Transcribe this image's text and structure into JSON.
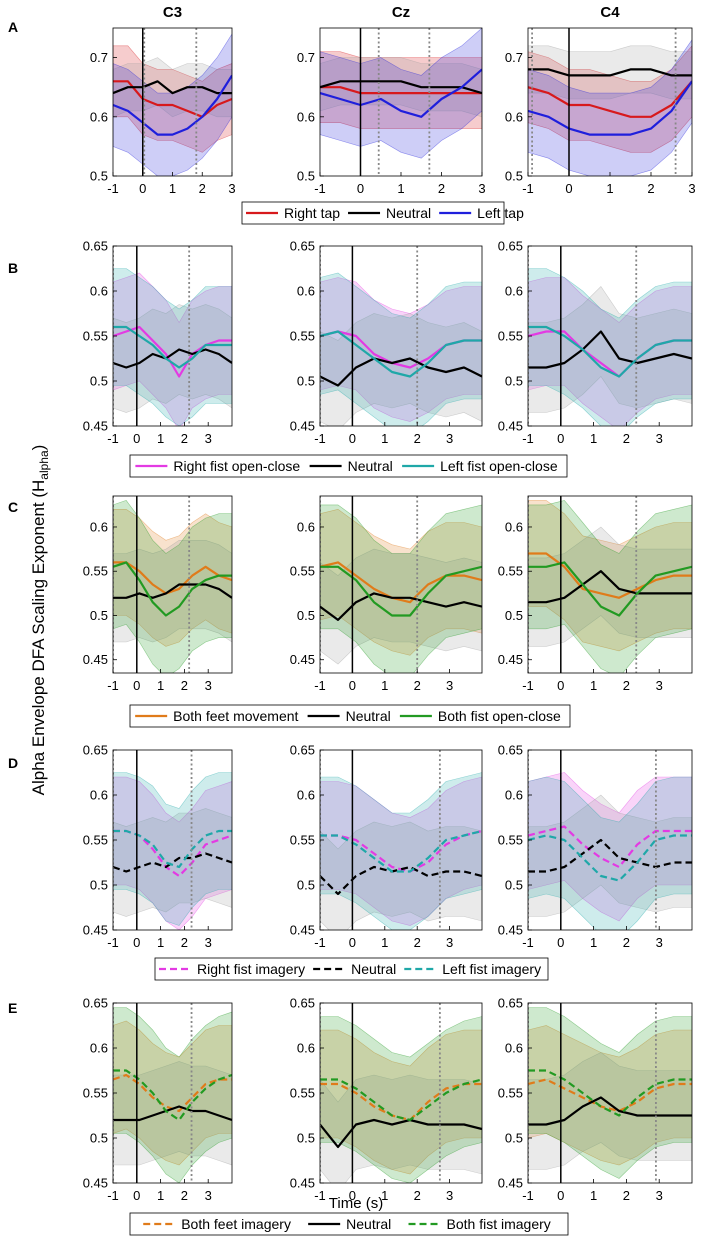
{
  "figure": {
    "ylabel_main": "Alpha Envelope DFA Scaling Exponent  (H",
    "ylabel_sub": "alpha",
    "ylabel_close": ")",
    "xlabel": "Time (s)"
  },
  "colors": {
    "red": "#d7191c",
    "black": "#000000",
    "blue": "#1f1fdc",
    "magenta": "#e33ae3",
    "cyan": "#1fa8a8",
    "orange": "#e07b1a",
    "green": "#229a22",
    "gray_band": "#9e9e9e"
  },
  "chart_data": [
    {
      "panel": "A",
      "type": "line",
      "channels": [
        "C3",
        "Cz",
        "C4"
      ],
      "xlabel": "",
      "ylabel": "",
      "xlim": [
        -1,
        3
      ],
      "ylim": [
        0.5,
        0.75
      ],
      "xticks": [
        -1,
        0,
        1,
        2,
        3
      ],
      "xtick_labels": [
        "-1",
        "0",
        "1",
        "2",
        "3"
      ],
      "yticks": [
        0.5,
        0.6,
        0.7
      ],
      "ytick_labels": [
        "0.5",
        "0.6",
        "0.7"
      ],
      "event_lines": [
        [
          0.05,
          1.8
        ],
        [
          0.45,
          1.7
        ],
        [
          -0.9,
          2.6
        ]
      ],
      "legend": [
        "Right tap",
        "Neutral",
        "Left tap"
      ],
      "series": [
        {
          "name": "Right tap",
          "color": "red",
          "dash": false,
          "band": 0.06,
          "values": [
            [
              0.66,
              0.66,
              0.63,
              0.62,
              0.62,
              0.61,
              0.6,
              0.62,
              0.63
            ],
            [
              0.65,
              0.65,
              0.64,
              0.64,
              0.64,
              0.64,
              0.64,
              0.64,
              0.64
            ],
            [
              0.65,
              0.64,
              0.62,
              0.62,
              0.61,
              0.6,
              0.6,
              0.62,
              0.66
            ]
          ]
        },
        {
          "name": "Neutral",
          "color": "black",
          "dash": false,
          "band": 0.04,
          "values": [
            [
              0.64,
              0.65,
              0.65,
              0.66,
              0.64,
              0.65,
              0.65,
              0.64,
              0.64
            ],
            [
              0.65,
              0.66,
              0.66,
              0.66,
              0.66,
              0.65,
              0.65,
              0.65,
              0.64
            ],
            [
              0.68,
              0.68,
              0.67,
              0.67,
              0.67,
              0.68,
              0.68,
              0.67,
              0.67
            ]
          ]
        },
        {
          "name": "Left tap",
          "color": "blue",
          "dash": false,
          "band": 0.07,
          "values": [
            [
              0.62,
              0.61,
              0.59,
              0.57,
              0.57,
              0.58,
              0.6,
              0.63,
              0.67
            ],
            [
              0.64,
              0.63,
              0.62,
              0.63,
              0.61,
              0.6,
              0.63,
              0.65,
              0.68
            ],
            [
              0.61,
              0.6,
              0.58,
              0.57,
              0.57,
              0.57,
              0.58,
              0.61,
              0.66
            ]
          ]
        }
      ]
    },
    {
      "panel": "B",
      "type": "line",
      "channels": [
        "",
        "",
        ""
      ],
      "xlabel": "",
      "ylabel": "",
      "xlim": [
        -1,
        4
      ],
      "ylim": [
        0.45,
        0.65
      ],
      "xticks": [
        -1,
        0,
        1,
        2,
        3
      ],
      "xtick_labels": [
        "-1",
        "0",
        "1",
        "2",
        "3"
      ],
      "yticks": [
        0.45,
        0.5,
        0.55,
        0.6,
        0.65
      ],
      "ytick_labels": [
        "0.45",
        "0.5",
        "0.55",
        "0.6",
        "0.65"
      ],
      "event_lines": [
        [
          -1,
          2.2
        ],
        [
          -1,
          2.0
        ],
        [
          -1,
          2.3
        ]
      ],
      "legend": [
        "Right fist open-close",
        "Neutral",
        "Left fist open-close"
      ],
      "series": [
        {
          "name": "Right fist open-close",
          "color": "magenta",
          "dash": false,
          "band": 0.06,
          "values": [
            [
              0.55,
              0.555,
              0.56,
              0.545,
              0.53,
              0.505,
              0.53,
              0.54,
              0.545,
              0.545
            ],
            [
              0.55,
              0.555,
              0.55,
              0.53,
              0.52,
              0.515,
              0.525,
              0.54,
              0.545,
              0.545
            ],
            [
              0.55,
              0.555,
              0.555,
              0.535,
              0.52,
              0.505,
              0.525,
              0.54,
              0.545,
              0.545
            ]
          ]
        },
        {
          "name": "Neutral",
          "color": "black",
          "dash": false,
          "band": 0.05,
          "values": [
            [
              0.52,
              0.515,
              0.52,
              0.53,
              0.525,
              0.535,
              0.53,
              0.535,
              0.53,
              0.52
            ],
            [
              0.505,
              0.495,
              0.515,
              0.525,
              0.52,
              0.525,
              0.515,
              0.51,
              0.515,
              0.505
            ],
            [
              0.515,
              0.515,
              0.52,
              0.535,
              0.555,
              0.525,
              0.52,
              0.525,
              0.53,
              0.525
            ]
          ]
        },
        {
          "name": "Left fist open-close",
          "color": "cyan",
          "dash": false,
          "band": 0.065,
          "values": [
            [
              0.56,
              0.56,
              0.55,
              0.54,
              0.525,
              0.515,
              0.525,
              0.54,
              0.54,
              0.54
            ],
            [
              0.55,
              0.555,
              0.54,
              0.525,
              0.51,
              0.505,
              0.52,
              0.54,
              0.545,
              0.545
            ],
            [
              0.56,
              0.56,
              0.55,
              0.535,
              0.515,
              0.505,
              0.525,
              0.54,
              0.545,
              0.545
            ]
          ]
        }
      ]
    },
    {
      "panel": "C",
      "type": "line",
      "channels": [
        "",
        "",
        ""
      ],
      "xlabel": "",
      "ylabel": "",
      "xlim": [
        -1,
        4
      ],
      "ylim": [
        0.435,
        0.635
      ],
      "xticks": [
        -1,
        0,
        1,
        2,
        3
      ],
      "xtick_labels": [
        "-1",
        "0",
        "1",
        "2",
        "3"
      ],
      "yticks": [
        0.45,
        0.5,
        0.55,
        0.6
      ],
      "ytick_labels": [
        "0.45",
        "0.5",
        "0.55",
        "0.6"
      ],
      "event_lines": [
        [
          -1,
          2.2
        ],
        [
          -1,
          2.0
        ],
        [
          -1,
          2.3
        ]
      ],
      "legend": [
        "Both feet movement",
        "Neutral",
        "Both fist open-close"
      ],
      "series": [
        {
          "name": "Both feet movement",
          "color": "orange",
          "dash": false,
          "band": 0.06,
          "values": [
            [
              0.56,
              0.56,
              0.55,
              0.535,
              0.525,
              0.53,
              0.545,
              0.555,
              0.545,
              0.54
            ],
            [
              0.555,
              0.56,
              0.545,
              0.53,
              0.52,
              0.515,
              0.535,
              0.545,
              0.545,
              0.54
            ],
            [
              0.57,
              0.57,
              0.555,
              0.53,
              0.525,
              0.52,
              0.53,
              0.54,
              0.545,
              0.545
            ]
          ]
        },
        {
          "name": "Neutral",
          "color": "black",
          "dash": false,
          "band": 0.05,
          "values": [
            [
              0.52,
              0.52,
              0.525,
              0.52,
              0.525,
              0.535,
              0.535,
              0.535,
              0.53,
              0.52
            ],
            [
              0.51,
              0.495,
              0.515,
              0.525,
              0.52,
              0.52,
              0.515,
              0.51,
              0.515,
              0.51
            ],
            [
              0.515,
              0.515,
              0.52,
              0.535,
              0.55,
              0.53,
              0.525,
              0.525,
              0.525,
              0.525
            ]
          ]
        },
        {
          "name": "Both fist open-close",
          "color": "green",
          "dash": false,
          "band": 0.07,
          "values": [
            [
              0.555,
              0.56,
              0.54,
              0.515,
              0.5,
              0.51,
              0.53,
              0.54,
              0.545,
              0.545
            ],
            [
              0.555,
              0.555,
              0.54,
              0.515,
              0.5,
              0.5,
              0.525,
              0.545,
              0.55,
              0.555
            ],
            [
              0.555,
              0.555,
              0.56,
              0.535,
              0.51,
              0.5,
              0.525,
              0.545,
              0.55,
              0.555
            ]
          ]
        }
      ]
    },
    {
      "panel": "D",
      "type": "line",
      "channels": [
        "",
        "",
        ""
      ],
      "xlabel": "",
      "ylabel": "",
      "xlim": [
        -1,
        4
      ],
      "ylim": [
        0.45,
        0.65
      ],
      "xticks": [
        -1,
        0,
        1,
        2,
        3
      ],
      "xtick_labels": [
        "-1",
        "0",
        "1",
        "2",
        "3"
      ],
      "yticks": [
        0.45,
        0.5,
        0.55,
        0.6,
        0.65
      ],
      "ytick_labels": [
        "0.45",
        "0.5",
        "0.55",
        "0.6",
        "0.65"
      ],
      "event_lines": [
        [
          -1,
          2.3
        ],
        [
          -1,
          2.7
        ],
        [
          -1,
          2.9
        ]
      ],
      "legend": [
        "Right fist imagery",
        "Neutral",
        "Left fist imagery"
      ],
      "series": [
        {
          "name": "Right fist imagery",
          "color": "magenta",
          "dash": true,
          "band": 0.06,
          "values": [
            [
              0.56,
              0.56,
              0.555,
              0.54,
              0.52,
              0.51,
              0.525,
              0.545,
              0.55,
              0.555
            ],
            [
              0.555,
              0.555,
              0.55,
              0.535,
              0.52,
              0.515,
              0.525,
              0.545,
              0.555,
              0.56
            ],
            [
              0.555,
              0.56,
              0.565,
              0.545,
              0.53,
              0.52,
              0.545,
              0.56,
              0.56,
              0.56
            ]
          ]
        },
        {
          "name": "Neutral",
          "color": "black",
          "dash": true,
          "band": 0.05,
          "values": [
            [
              0.52,
              0.515,
              0.52,
              0.525,
              0.52,
              0.53,
              0.53,
              0.535,
              0.53,
              0.525
            ],
            [
              0.51,
              0.49,
              0.51,
              0.52,
              0.515,
              0.52,
              0.51,
              0.515,
              0.515,
              0.51
            ],
            [
              0.515,
              0.515,
              0.52,
              0.535,
              0.55,
              0.53,
              0.525,
              0.52,
              0.525,
              0.525
            ]
          ]
        },
        {
          "name": "Left fist imagery",
          "color": "cyan",
          "dash": true,
          "band": 0.065,
          "values": [
            [
              0.56,
              0.56,
              0.555,
              0.545,
              0.525,
              0.52,
              0.54,
              0.555,
              0.56,
              0.56
            ],
            [
              0.555,
              0.555,
              0.545,
              0.53,
              0.515,
              0.515,
              0.53,
              0.55,
              0.555,
              0.56
            ],
            [
              0.55,
              0.555,
              0.55,
              0.53,
              0.51,
              0.505,
              0.525,
              0.55,
              0.555,
              0.555
            ]
          ]
        }
      ]
    },
    {
      "panel": "E",
      "type": "line",
      "channels": [
        "",
        "",
        ""
      ],
      "xlabel": "Time (s)",
      "ylabel": "",
      "xlim": [
        -1,
        4
      ],
      "ylim": [
        0.45,
        0.65
      ],
      "xticks": [
        -1,
        0,
        1,
        2,
        3
      ],
      "xtick_labels": [
        "-1",
        "0",
        "1",
        "2",
        "3"
      ],
      "yticks": [
        0.45,
        0.5,
        0.55,
        0.6,
        0.65
      ],
      "ytick_labels": [
        "0.45",
        "0.5",
        "0.55",
        "0.6",
        "0.65"
      ],
      "event_lines": [
        [
          -1,
          2.3
        ],
        [
          -1,
          2.7
        ],
        [
          -1,
          2.9
        ]
      ],
      "legend": [
        "Both feet imagery",
        "Neutral",
        "Both fist imagery"
      ],
      "series": [
        {
          "name": "Both feet imagery",
          "color": "orange",
          "dash": true,
          "band": 0.06,
          "values": [
            [
              0.565,
              0.57,
              0.56,
              0.545,
              0.535,
              0.53,
              0.545,
              0.56,
              0.565,
              0.565
            ],
            [
              0.56,
              0.56,
              0.55,
              0.535,
              0.525,
              0.52,
              0.54,
              0.555,
              0.56,
              0.56
            ],
            [
              0.56,
              0.565,
              0.555,
              0.545,
              0.535,
              0.53,
              0.54,
              0.555,
              0.56,
              0.56
            ]
          ]
        },
        {
          "name": "Neutral",
          "color": "black",
          "dash": false,
          "band": 0.05,
          "values": [
            [
              0.52,
              0.52,
              0.52,
              0.525,
              0.53,
              0.535,
              0.53,
              0.53,
              0.525,
              0.52
            ],
            [
              0.515,
              0.49,
              0.515,
              0.52,
              0.515,
              0.52,
              0.515,
              0.515,
              0.515,
              0.51
            ],
            [
              0.515,
              0.515,
              0.52,
              0.535,
              0.545,
              0.53,
              0.525,
              0.525,
              0.525,
              0.525
            ]
          ]
        },
        {
          "name": "Both fist imagery",
          "color": "green",
          "dash": true,
          "band": 0.07,
          "values": [
            [
              0.575,
              0.575,
              0.565,
              0.55,
              0.53,
              0.52,
              0.54,
              0.555,
              0.565,
              0.57
            ],
            [
              0.565,
              0.565,
              0.555,
              0.54,
              0.525,
              0.52,
              0.535,
              0.55,
              0.56,
              0.565
            ],
            [
              0.575,
              0.575,
              0.565,
              0.55,
              0.535,
              0.525,
              0.545,
              0.56,
              0.565,
              0.565
            ]
          ]
        }
      ]
    }
  ]
}
